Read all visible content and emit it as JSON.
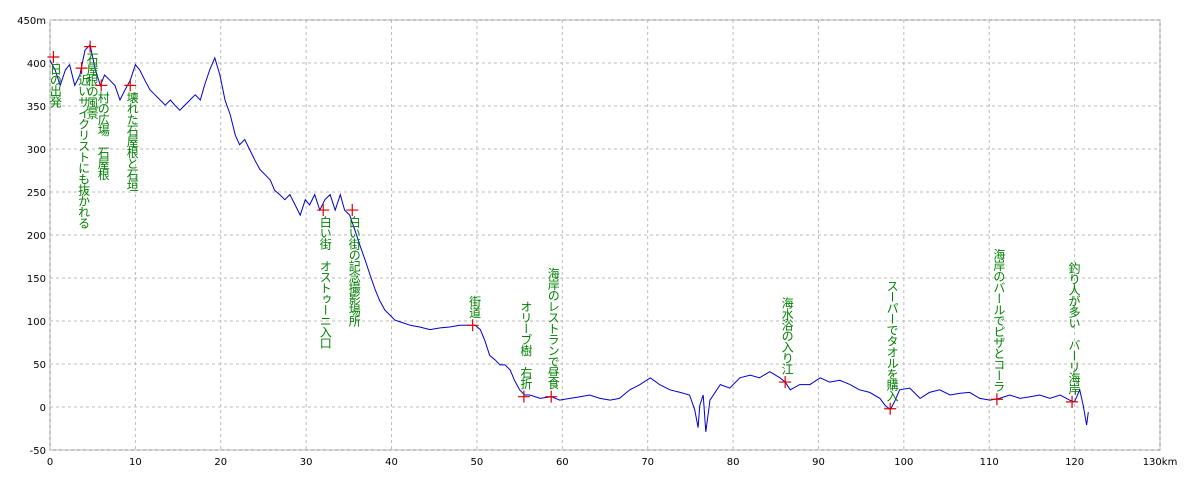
{
  "chart_data": {
    "type": "line",
    "x": [
      0,
      0.6,
      1.2,
      1.8,
      2.3,
      2.9,
      3.5,
      4.1,
      4.7,
      5.3,
      5.9,
      6.4,
      7.0,
      7.6,
      8.2,
      8.8,
      9.4,
      10.0,
      10.5,
      11.1,
      11.7,
      12.3,
      12.9,
      13.5,
      14.1,
      14.6,
      15.2,
      15.8,
      16.4,
      17.0,
      17.6,
      18.1,
      18.7,
      19.3,
      19.9,
      20.5,
      21.1,
      21.7,
      22.2,
      22.8,
      23.4,
      24.0,
      24.6,
      25.2,
      25.8,
      26.3,
      26.9,
      27.5,
      28.1,
      28.7,
      29.3,
      29.9,
      30.4,
      31.0,
      31.6,
      32.2,
      32.8,
      33.4,
      34.0,
      34.5,
      35.1,
      35.7,
      36.3,
      36.9,
      37.5,
      38.1,
      38.6,
      39.2,
      39.8,
      40.4,
      41.0,
      42.2,
      43.3,
      44.5,
      45.7,
      46.8,
      48.0,
      49.2,
      49.8,
      50.4,
      50.9,
      51.5,
      52.1,
      52.7,
      53.3,
      53.9,
      54.4,
      55.0,
      55.6,
      56.2,
      57.4,
      58.7,
      59.7,
      60.9,
      62.1,
      63.2,
      64.4,
      65.6,
      66.7,
      67.9,
      69.1,
      70.3,
      71.4,
      72.6,
      73.8,
      74.9,
      75.5,
      75.9,
      76.1,
      76.5,
      76.8,
      77.3,
      78.5,
      79.6,
      80.8,
      82.0,
      83.1,
      84.3,
      85.5,
      86.1,
      86.7,
      87.8,
      89.0,
      90.2,
      91.3,
      92.5,
      93.7,
      94.8,
      96.0,
      97.2,
      97.8,
      98.4,
      98.9,
      99.5,
      100.7,
      101.9,
      103.0,
      104.2,
      105.4,
      106.6,
      107.7,
      108.9,
      110.1,
      111.2,
      112.4,
      113.6,
      114.8,
      115.9,
      117.1,
      118.3,
      119.4,
      120.0,
      120.6,
      121.0,
      121.4,
      121.6
    ],
    "values": [
      403,
      392,
      374,
      392,
      398,
      374,
      386,
      415,
      421,
      392,
      374,
      386,
      380,
      374,
      357,
      369,
      380,
      398,
      392,
      380,
      369,
      363,
      357,
      351,
      357,
      351,
      345,
      351,
      357,
      363,
      357,
      374,
      392,
      406,
      386,
      357,
      340,
      316,
      305,
      311,
      299,
      287,
      276,
      270,
      264,
      252,
      247,
      241,
      247,
      235,
      223,
      241,
      235,
      247,
      229,
      241,
      247,
      229,
      247,
      229,
      223,
      206,
      188,
      171,
      153,
      136,
      124,
      113,
      107,
      101,
      99,
      95,
      93,
      90,
      92,
      93,
      95,
      95,
      95,
      90,
      78,
      60,
      55,
      49,
      49,
      43,
      31,
      20,
      14,
      14,
      10,
      12,
      8,
      10,
      12,
      14,
      10,
      8,
      10,
      20,
      26,
      34,
      26,
      20,
      17,
      14,
      -3,
      -24,
      2,
      14,
      -29,
      8,
      26,
      22,
      34,
      37,
      34,
      41,
      34,
      29,
      20,
      26,
      26,
      34,
      29,
      31,
      26,
      20,
      17,
      10,
      2,
      -3,
      6,
      20,
      22,
      10,
      17,
      20,
      14,
      16,
      17,
      10,
      8,
      10,
      14,
      10,
      12,
      14,
      10,
      14,
      8,
      6,
      20,
      2,
      -21,
      -6
    ],
    "color": "#0000cc",
    "annotations": [
      {
        "x": 0.4,
        "y": 407,
        "text": "日の出発"
      },
      {
        "x": 3.7,
        "y": 394,
        "text": "近いサイクリストにも抜かれる"
      },
      {
        "x": 4.7,
        "y": 419,
        "text": "石屋根の風景"
      },
      {
        "x": 6.0,
        "y": 374,
        "text": "村の広場　石屋根"
      },
      {
        "x": 9.4,
        "y": 374,
        "text": "壊れた石屋根と石垣"
      },
      {
        "x": 32.0,
        "y": 229,
        "text": "白い街　オストゥーニ入口"
      },
      {
        "x": 35.4,
        "y": 229,
        "text": "白い街の記念撮影場所"
      },
      {
        "x": 49.5,
        "y": 95,
        "text": "街道"
      },
      {
        "x": 55.5,
        "y": 12,
        "text": "オリーブ樹　右折"
      },
      {
        "x": 58.7,
        "y": 12,
        "text": "海岸のレストランで昼食"
      },
      {
        "x": 86.1,
        "y": 29,
        "text": "海水浴の入り江"
      },
      {
        "x": 98.4,
        "y": -2,
        "text": "スーパーでタオルを購入"
      },
      {
        "x": 110.9,
        "y": 9,
        "text": "海岸のバールでピザとコーラ"
      },
      {
        "x": 119.7,
        "y": 6,
        "text": "釣り人が多い　バーリ海岸"
      }
    ],
    "marker_color": "#e00000",
    "annotation_color": "#008000",
    "xlim": [
      0,
      130
    ],
    "ylim": [
      -50,
      450
    ],
    "xticks": [
      0,
      10,
      20,
      30,
      40,
      50,
      60,
      70,
      80,
      90,
      100,
      110,
      120,
      {
        "value": 130,
        "label": "130km"
      }
    ],
    "yticks": [
      -50,
      0,
      50,
      100,
      150,
      200,
      250,
      300,
      350,
      400,
      {
        "value": 450,
        "label": "450m"
      }
    ],
    "grid": true
  }
}
